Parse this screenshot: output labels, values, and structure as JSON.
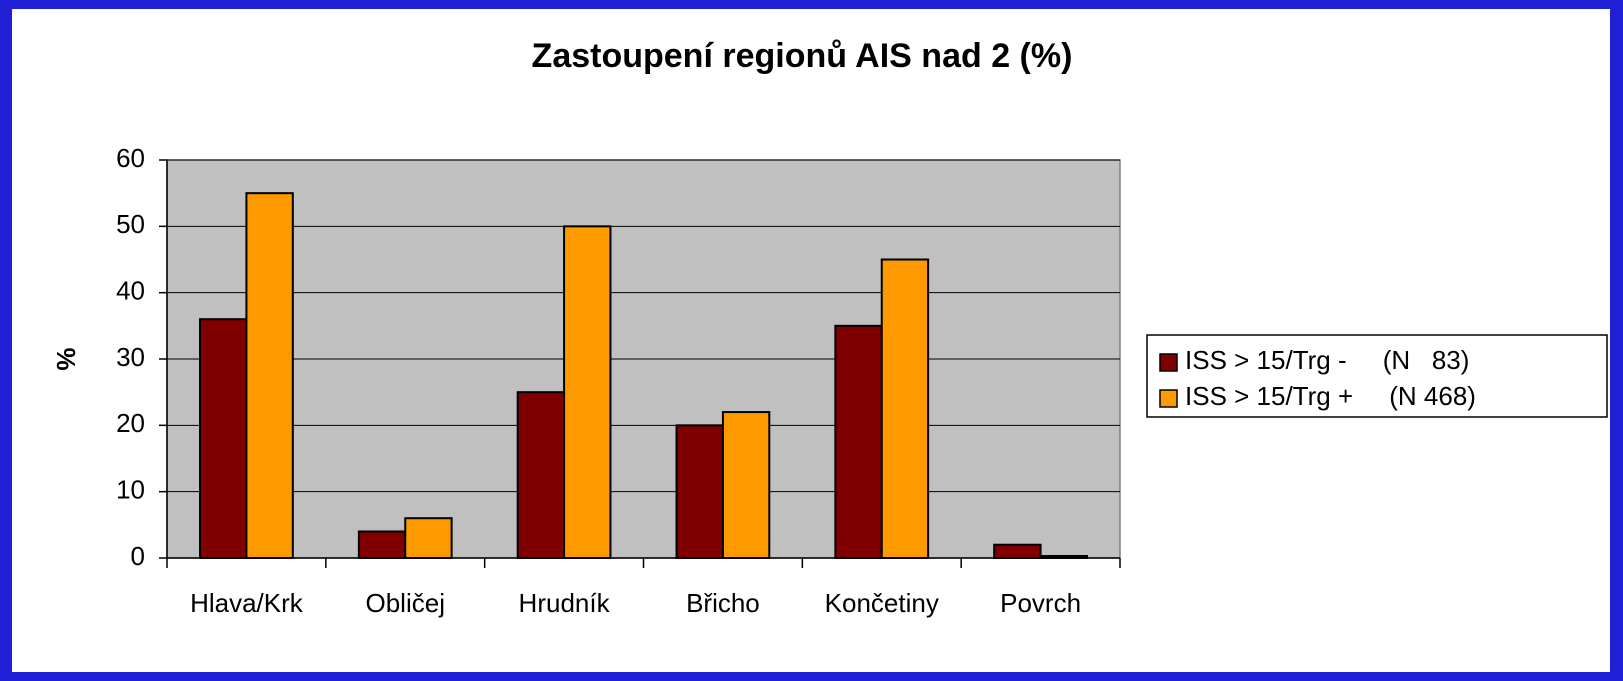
{
  "chart_data": {
    "type": "bar",
    "title": "Zastoupení regionů AIS nad 2 (%)",
    "y_label": "%",
    "categories": [
      "Hlava/Krk",
      "Obličej",
      "Hrudník",
      "Břicho",
      "Končetiny",
      "Povrch"
    ],
    "series": [
      {
        "name": "ISS > 15/Trg -     (N   83)",
        "color": "#800000",
        "values": [
          36,
          4,
          25,
          20,
          35,
          2
        ]
      },
      {
        "name": "ISS > 15/Trg +     (N 468)",
        "color": "#ff9900",
        "values": [
          55,
          6,
          50,
          22,
          45,
          0.3
        ]
      }
    ],
    "ylim": [
      0,
      60
    ],
    "yticks": [
      0,
      10,
      20,
      30,
      40,
      50,
      60
    ],
    "grid": true,
    "legend": "right"
  }
}
